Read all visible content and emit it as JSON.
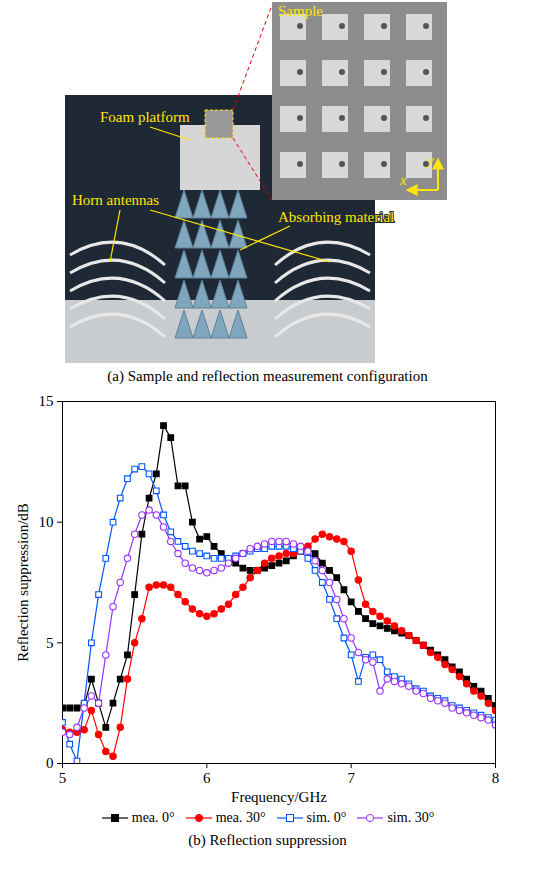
{
  "panel_a": {
    "caption": "(a) Sample and reflection measurement configuration",
    "labels": {
      "sample": "Sample",
      "platform": "Foam platform",
      "antennas": "Horn antennas",
      "absorber": "Absorbing material"
    },
    "axes": {
      "x": "x",
      "y": "y"
    }
  },
  "chart_data": {
    "type": "line",
    "title": "(b) Reflection suppression",
    "x_label": "Frequency/GHz",
    "y_label": "Reflection suppression/dB",
    "xlim": [
      5,
      8
    ],
    "xticks": [
      5,
      6,
      7,
      8
    ],
    "ylim": [
      0,
      15
    ],
    "yticks": [
      0,
      5,
      10,
      15
    ],
    "legend": "bottom",
    "x": [
      5.0,
      5.05,
      5.1,
      5.15,
      5.2,
      5.25,
      5.3,
      5.35,
      5.4,
      5.45,
      5.5,
      5.55,
      5.6,
      5.65,
      5.7,
      5.75,
      5.8,
      5.85,
      5.9,
      5.95,
      6.0,
      6.05,
      6.1,
      6.15,
      6.2,
      6.25,
      6.3,
      6.35,
      6.4,
      6.45,
      6.5,
      6.55,
      6.6,
      6.65,
      6.7,
      6.75,
      6.8,
      6.85,
      6.9,
      6.95,
      7.0,
      7.05,
      7.1,
      7.15,
      7.2,
      7.25,
      7.3,
      7.35,
      7.4,
      7.45,
      7.5,
      7.55,
      7.6,
      7.65,
      7.7,
      7.75,
      7.8,
      7.85,
      7.9,
      7.95,
      8.0
    ],
    "series": [
      {
        "name": "mea. 0°",
        "color": "#000000",
        "marker": "square",
        "values": [
          2.3,
          2.3,
          2.3,
          2.4,
          3.5,
          2.5,
          1.5,
          2.5,
          3.5,
          4.5,
          7.0,
          9.5,
          11.0,
          12.0,
          14.0,
          13.5,
          11.5,
          11.5,
          10.0,
          9.3,
          9.4,
          9.0,
          8.7,
          8.4,
          8.3,
          8.1,
          8.0,
          8.0,
          8.1,
          8.2,
          8.3,
          8.4,
          8.6,
          8.8,
          8.9,
          8.7,
          8.3,
          8.0,
          7.7,
          7.2,
          6.7,
          6.3,
          6.0,
          5.8,
          5.7,
          5.6,
          5.5,
          5.4,
          5.3,
          5.1,
          4.9,
          4.7,
          4.5,
          4.3,
          4.0,
          3.8,
          3.5,
          3.2,
          3.0,
          2.7,
          2.4
        ]
      },
      {
        "name": "mea. 30°",
        "color": "#ff0000",
        "marker": "circle",
        "values": [
          1.4,
          1.3,
          1.3,
          1.4,
          2.2,
          1.2,
          0.5,
          0.3,
          1.5,
          3.5,
          5.0,
          6.0,
          7.3,
          7.4,
          7.4,
          7.3,
          7.0,
          6.7,
          6.4,
          6.2,
          6.1,
          6.2,
          6.4,
          6.6,
          7.0,
          7.3,
          7.7,
          8.0,
          8.3,
          8.5,
          8.6,
          8.7,
          8.7,
          8.8,
          9.0,
          9.3,
          9.5,
          9.4,
          9.3,
          9.2,
          8.8,
          7.6,
          6.6,
          6.3,
          6.1,
          5.9,
          5.7,
          5.5,
          5.3,
          5.1,
          4.9,
          4.6,
          4.4,
          4.1,
          3.9,
          3.6,
          3.3,
          3.0,
          2.8,
          2.5,
          2.2
        ]
      },
      {
        "name": "sim. 0°",
        "color": "#0055ff",
        "marker": "square-open",
        "values": [
          1.7,
          0.8,
          0.1,
          2.5,
          5.0,
          7.0,
          8.5,
          10.0,
          11.0,
          11.8,
          12.2,
          12.3,
          12.0,
          11.3,
          10.3,
          9.6,
          9.2,
          9.0,
          8.8,
          8.7,
          8.6,
          8.5,
          8.5,
          8.5,
          8.6,
          8.7,
          8.8,
          8.9,
          8.9,
          9.0,
          9.0,
          9.0,
          8.9,
          8.8,
          8.5,
          8.0,
          7.5,
          6.8,
          6.0,
          5.2,
          4.5,
          3.4,
          4.4,
          4.5,
          4.3,
          3.8,
          3.6,
          3.5,
          3.3,
          3.1,
          3.0,
          2.8,
          2.7,
          2.6,
          2.4,
          2.3,
          2.2,
          2.1,
          2.0,
          1.9,
          1.8
        ]
      },
      {
        "name": "sim. 30°",
        "color": "#9933ff",
        "marker": "circle-open",
        "values": [
          1.3,
          1.2,
          1.5,
          2.3,
          2.8,
          2.5,
          4.5,
          6.5,
          7.5,
          8.5,
          9.5,
          10.3,
          10.5,
          10.3,
          9.8,
          9.2,
          8.7,
          8.3,
          8.1,
          8.0,
          7.9,
          8.0,
          8.1,
          8.3,
          8.5,
          8.7,
          8.9,
          9.0,
          9.1,
          9.2,
          9.2,
          9.2,
          9.1,
          9.0,
          8.8,
          8.4,
          8.0,
          7.5,
          6.8,
          6.0,
          5.2,
          4.6,
          4.3,
          4.2,
          3.0,
          3.5,
          3.4,
          3.3,
          3.2,
          3.0,
          2.9,
          2.7,
          2.6,
          2.5,
          2.3,
          2.2,
          2.1,
          2.0,
          1.9,
          1.8,
          1.6
        ]
      }
    ]
  }
}
